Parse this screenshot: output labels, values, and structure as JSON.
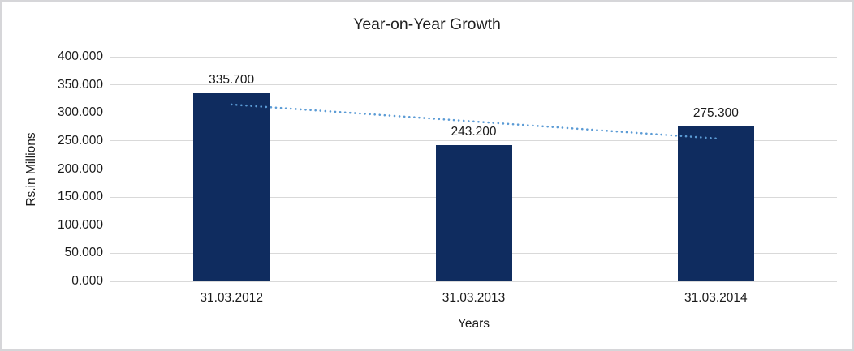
{
  "chart_data": {
    "type": "bar",
    "title": "Year-on-Year Growth",
    "xlabel": "Years",
    "ylabel": "Rs.in Millions",
    "categories": [
      "31.03.2012",
      "31.03.2013",
      "31.03.2014"
    ],
    "values": [
      335.7,
      243.2,
      275.3
    ],
    "data_labels": [
      "335.700",
      "243.200",
      "275.300"
    ],
    "ylim": [
      0,
      400
    ],
    "ytick_step": 50,
    "ytick_labels": [
      "0.000",
      "50.000",
      "100.000",
      "150.000",
      "200.000",
      "250.000",
      "300.000",
      "350.000",
      "400.000"
    ],
    "grid": true,
    "legend": "none",
    "colors": {
      "bar": "#0f2c5f",
      "trendline": "#5b9bd5",
      "gridline": "#d9d9d9",
      "text": "#1a1a1a",
      "frame_border": "#d6d6d9"
    },
    "trendline": {
      "type": "linear",
      "style": "dotted",
      "start_value": 314.9,
      "end_value": 254.5
    }
  }
}
